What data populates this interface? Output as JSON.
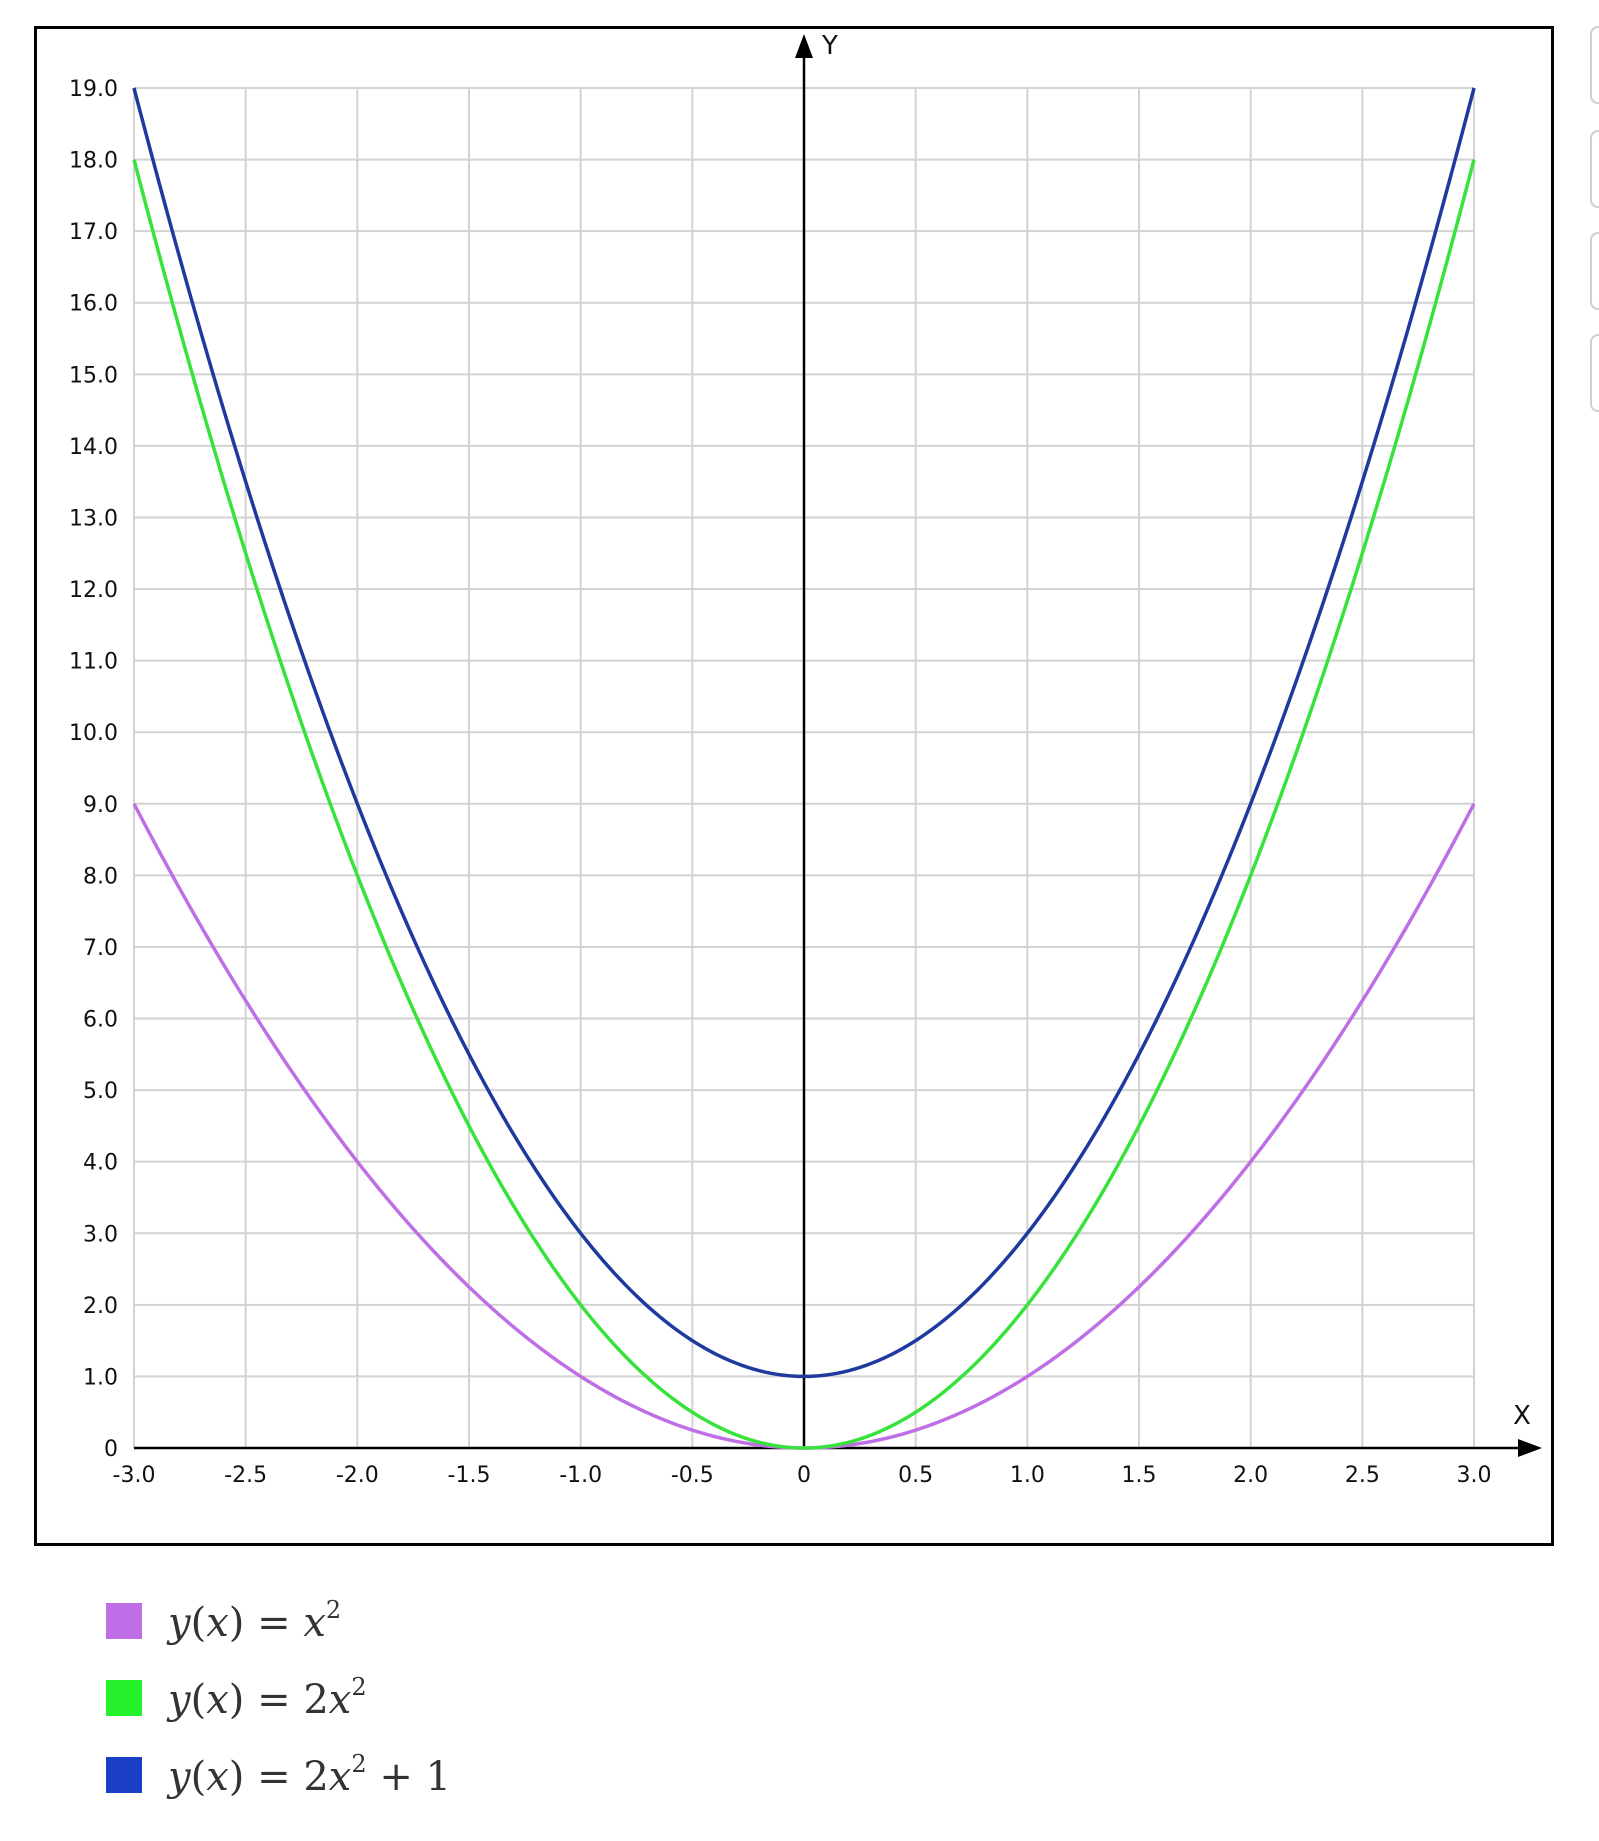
{
  "chart_data": {
    "type": "line",
    "title": "",
    "xlabel": "X",
    "ylabel": "Y",
    "xlim": [
      -3.0,
      3.0
    ],
    "ylim": [
      0,
      19.0
    ],
    "grid": true,
    "legend_position": "bottom-left",
    "x_ticks": [
      "-3.0",
      "-2.5",
      "-2.0",
      "-1.5",
      "-1.0",
      "-0.5",
      "0",
      "0.5",
      "1.0",
      "1.5",
      "2.0",
      "2.5",
      "3.0"
    ],
    "y_ticks": [
      "0",
      "1.0",
      "2.0",
      "3.0",
      "4.0",
      "5.0",
      "6.0",
      "7.0",
      "8.0",
      "9.0",
      "10.0",
      "11.0",
      "12.0",
      "13.0",
      "14.0",
      "15.0",
      "16.0",
      "17.0",
      "18.0",
      "19.0"
    ],
    "x": [
      -3.0,
      -2.5,
      -2.0,
      -1.5,
      -1.0,
      -0.5,
      0,
      0.5,
      1.0,
      1.5,
      2.0,
      2.5,
      3.0
    ],
    "series": [
      {
        "color": "#bf6fe6",
        "legend": {
          "fn": "y",
          "arg": "x",
          "rhs_var": "x",
          "coef": "",
          "exp": "2",
          "tail": ""
        },
        "values": [
          9.0,
          6.25,
          4.0,
          2.25,
          1.0,
          0.25,
          0,
          0.25,
          1.0,
          2.25,
          4.0,
          6.25,
          9.0
        ]
      },
      {
        "color": "#37e33a",
        "legend": {
          "fn": "y",
          "arg": "x",
          "rhs_var": "x",
          "coef": "2",
          "exp": "2",
          "tail": ""
        },
        "values": [
          18.0,
          12.5,
          8.0,
          4.5,
          2.0,
          0.5,
          0,
          0.5,
          2.0,
          4.5,
          8.0,
          12.5,
          18.0
        ]
      },
      {
        "color": "#1f3a9e",
        "legend": {
          "fn": "y",
          "arg": "x",
          "rhs_var": "x",
          "coef": "2",
          "exp": "2",
          "tail": " + 1"
        },
        "values": [
          19.0,
          13.5,
          9.0,
          5.5,
          3.0,
          1.5,
          1.0,
          1.5,
          3.0,
          5.5,
          9.0,
          13.5,
          19.0
        ]
      }
    ]
  },
  "legend_swatch_colors": [
    "#bf6ee8",
    "#25f22b",
    "#1a3fc4"
  ]
}
